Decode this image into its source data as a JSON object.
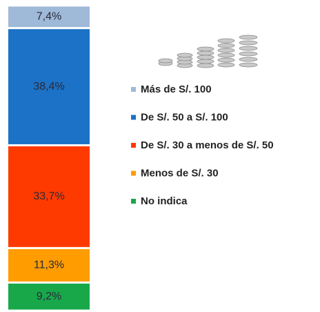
{
  "chart_data": {
    "type": "stacked_bar",
    "series": [
      {
        "name": "Más de S/. 100",
        "color": "#9fb9d8",
        "values": [
          7.4
        ],
        "value_labels": [
          "7,4%"
        ]
      },
      {
        "name": "De S/. 50 a S/. 100",
        "color": "#1b72c6",
        "values": [
          38.4
        ],
        "value_labels": [
          "38,4%"
        ]
      },
      {
        "name": "De S/. 30 a menos de S/. 50",
        "color": "#ff3a00",
        "values": [
          33.7
        ],
        "value_labels": [
          "33,7%"
        ]
      },
      {
        "name": "Menos de S/. 30",
        "color": "#ff9c00",
        "values": [
          11.3
        ],
        "value_labels": [
          "11,3%"
        ]
      },
      {
        "name": "No indica",
        "color": "#18a84a",
        "values": [
          9.2
        ],
        "value_labels": [
          "9,2%"
        ]
      }
    ]
  }
}
